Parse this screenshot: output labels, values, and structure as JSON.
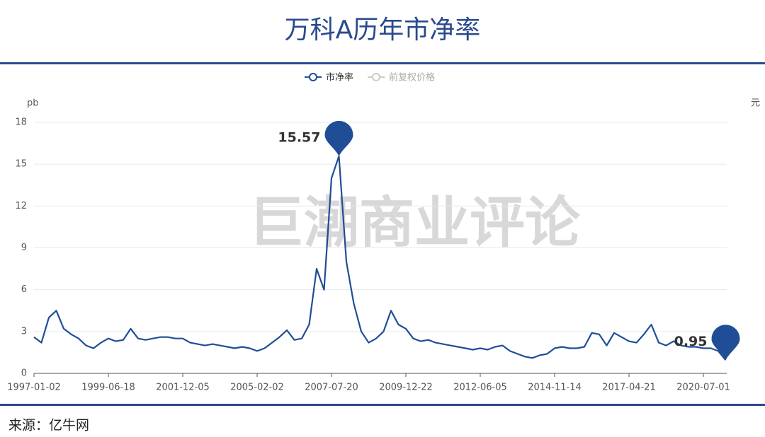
{
  "chart_data": {
    "type": "line",
    "title": "万科A历年市净率",
    "source": "来源：亿牛网",
    "watermark": "巨潮商业评论",
    "y_axis_label": "pb",
    "y2_axis_label": "元",
    "categories": [
      "1997-01-02",
      null,
      null,
      null,
      null,
      null,
      null,
      null,
      null,
      null,
      "1999-06-18",
      null,
      null,
      null,
      null,
      null,
      null,
      null,
      null,
      null,
      "2001-12-05",
      null,
      null,
      null,
      null,
      null,
      null,
      null,
      null,
      null,
      "2005-02-02",
      null,
      null,
      null,
      null,
      null,
      null,
      null,
      null,
      null,
      "2007-07-20",
      null,
      null,
      null,
      null,
      null,
      null,
      null,
      null,
      null,
      "2009-12-22",
      null,
      null,
      null,
      null,
      null,
      null,
      null,
      null,
      null,
      "2012-06-05",
      null,
      null,
      null,
      null,
      null,
      null,
      null,
      null,
      null,
      "2014-11-14",
      null,
      null,
      null,
      null,
      null,
      null,
      null,
      null,
      null,
      "2017-04-21",
      null,
      null,
      null,
      null,
      null,
      null,
      null,
      null,
      null,
      "2020-07-01",
      null,
      null,
      null
    ],
    "series": [
      {
        "name": "市净率",
        "color": "#1f4e96",
        "values": [
          2.6,
          2.2,
          4.0,
          4.5,
          3.2,
          2.8,
          2.5,
          2.0,
          1.8,
          2.2,
          2.5,
          2.3,
          2.4,
          3.2,
          2.5,
          2.4,
          2.5,
          2.6,
          2.6,
          2.5,
          2.5,
          2.2,
          2.1,
          2.0,
          2.1,
          2.0,
          1.9,
          1.8,
          1.9,
          1.8,
          1.6,
          1.8,
          2.2,
          2.6,
          3.1,
          2.4,
          2.5,
          3.5,
          7.5,
          6.0,
          14,
          15.57,
          8,
          5,
          3.0,
          2.2,
          2.5,
          3.0,
          4.5,
          3.5,
          3.2,
          2.5,
          2.3,
          2.4,
          2.2,
          2.1,
          2.0,
          1.9,
          1.8,
          1.7,
          1.8,
          1.7,
          1.9,
          2.0,
          1.6,
          1.4,
          1.2,
          1.1,
          1.3,
          1.4,
          1.8,
          1.9,
          1.8,
          1.8,
          1.9,
          2.9,
          2.8,
          2.0,
          2.9,
          2.6,
          2.3,
          2.2,
          2.8,
          3.5,
          2.2,
          2.0,
          2.3,
          2.0,
          1.9,
          1.9,
          1.8,
          1.8,
          1.6,
          0.95
        ]
      },
      {
        "name": "前复权价格",
        "color": "#cccccc",
        "hidden": true
      }
    ],
    "ylim": [
      0,
      18
    ],
    "yticks": [
      0,
      3,
      6,
      9,
      12,
      15,
      18
    ],
    "grid": true
  }
}
